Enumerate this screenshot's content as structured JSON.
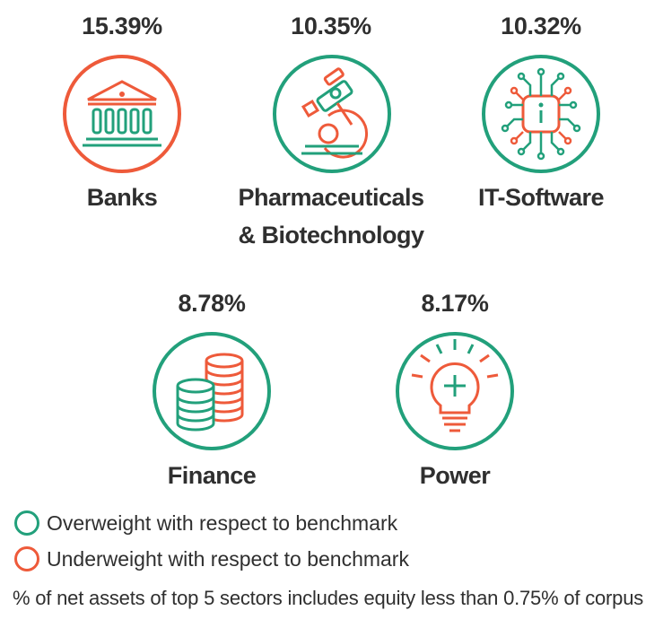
{
  "chart_data": {
    "type": "icon-stat",
    "sectors": [
      {
        "name_line1": "Banks",
        "name_line2": "",
        "value_pct": 15.39,
        "value_label": "15.39%",
        "weight": "underweight",
        "icon": "bank-icon"
      },
      {
        "name_line1": "Pharmaceuticals",
        "name_line2": "& Biotechnology",
        "value_pct": 10.35,
        "value_label": "10.35%",
        "weight": "overweight",
        "icon": "microscope-icon"
      },
      {
        "name_line1": "IT-Software",
        "name_line2": "",
        "value_pct": 10.32,
        "value_label": "10.32%",
        "weight": "overweight",
        "icon": "chip-icon"
      },
      {
        "name_line1": "Finance",
        "name_line2": "",
        "value_pct": 8.78,
        "value_label": "8.78%",
        "weight": "overweight",
        "icon": "coins-icon"
      },
      {
        "name_line1": "Power",
        "name_line2": "",
        "value_pct": 8.17,
        "value_label": "8.17%",
        "weight": "overweight",
        "icon": "lightbulb-icon"
      }
    ],
    "legend": [
      {
        "label": "Overweight with respect to benchmark",
        "color": "#22a07b"
      },
      {
        "label": "Underweight with respect to benchmark",
        "color": "#ee5a3a"
      }
    ],
    "footnote": "% of net assets of top 5 sectors includes equity less than 0.75% of corpus"
  },
  "colors": {
    "green": "#22a07b",
    "orange": "#ee5a3a",
    "text": "#2f2f2f"
  }
}
